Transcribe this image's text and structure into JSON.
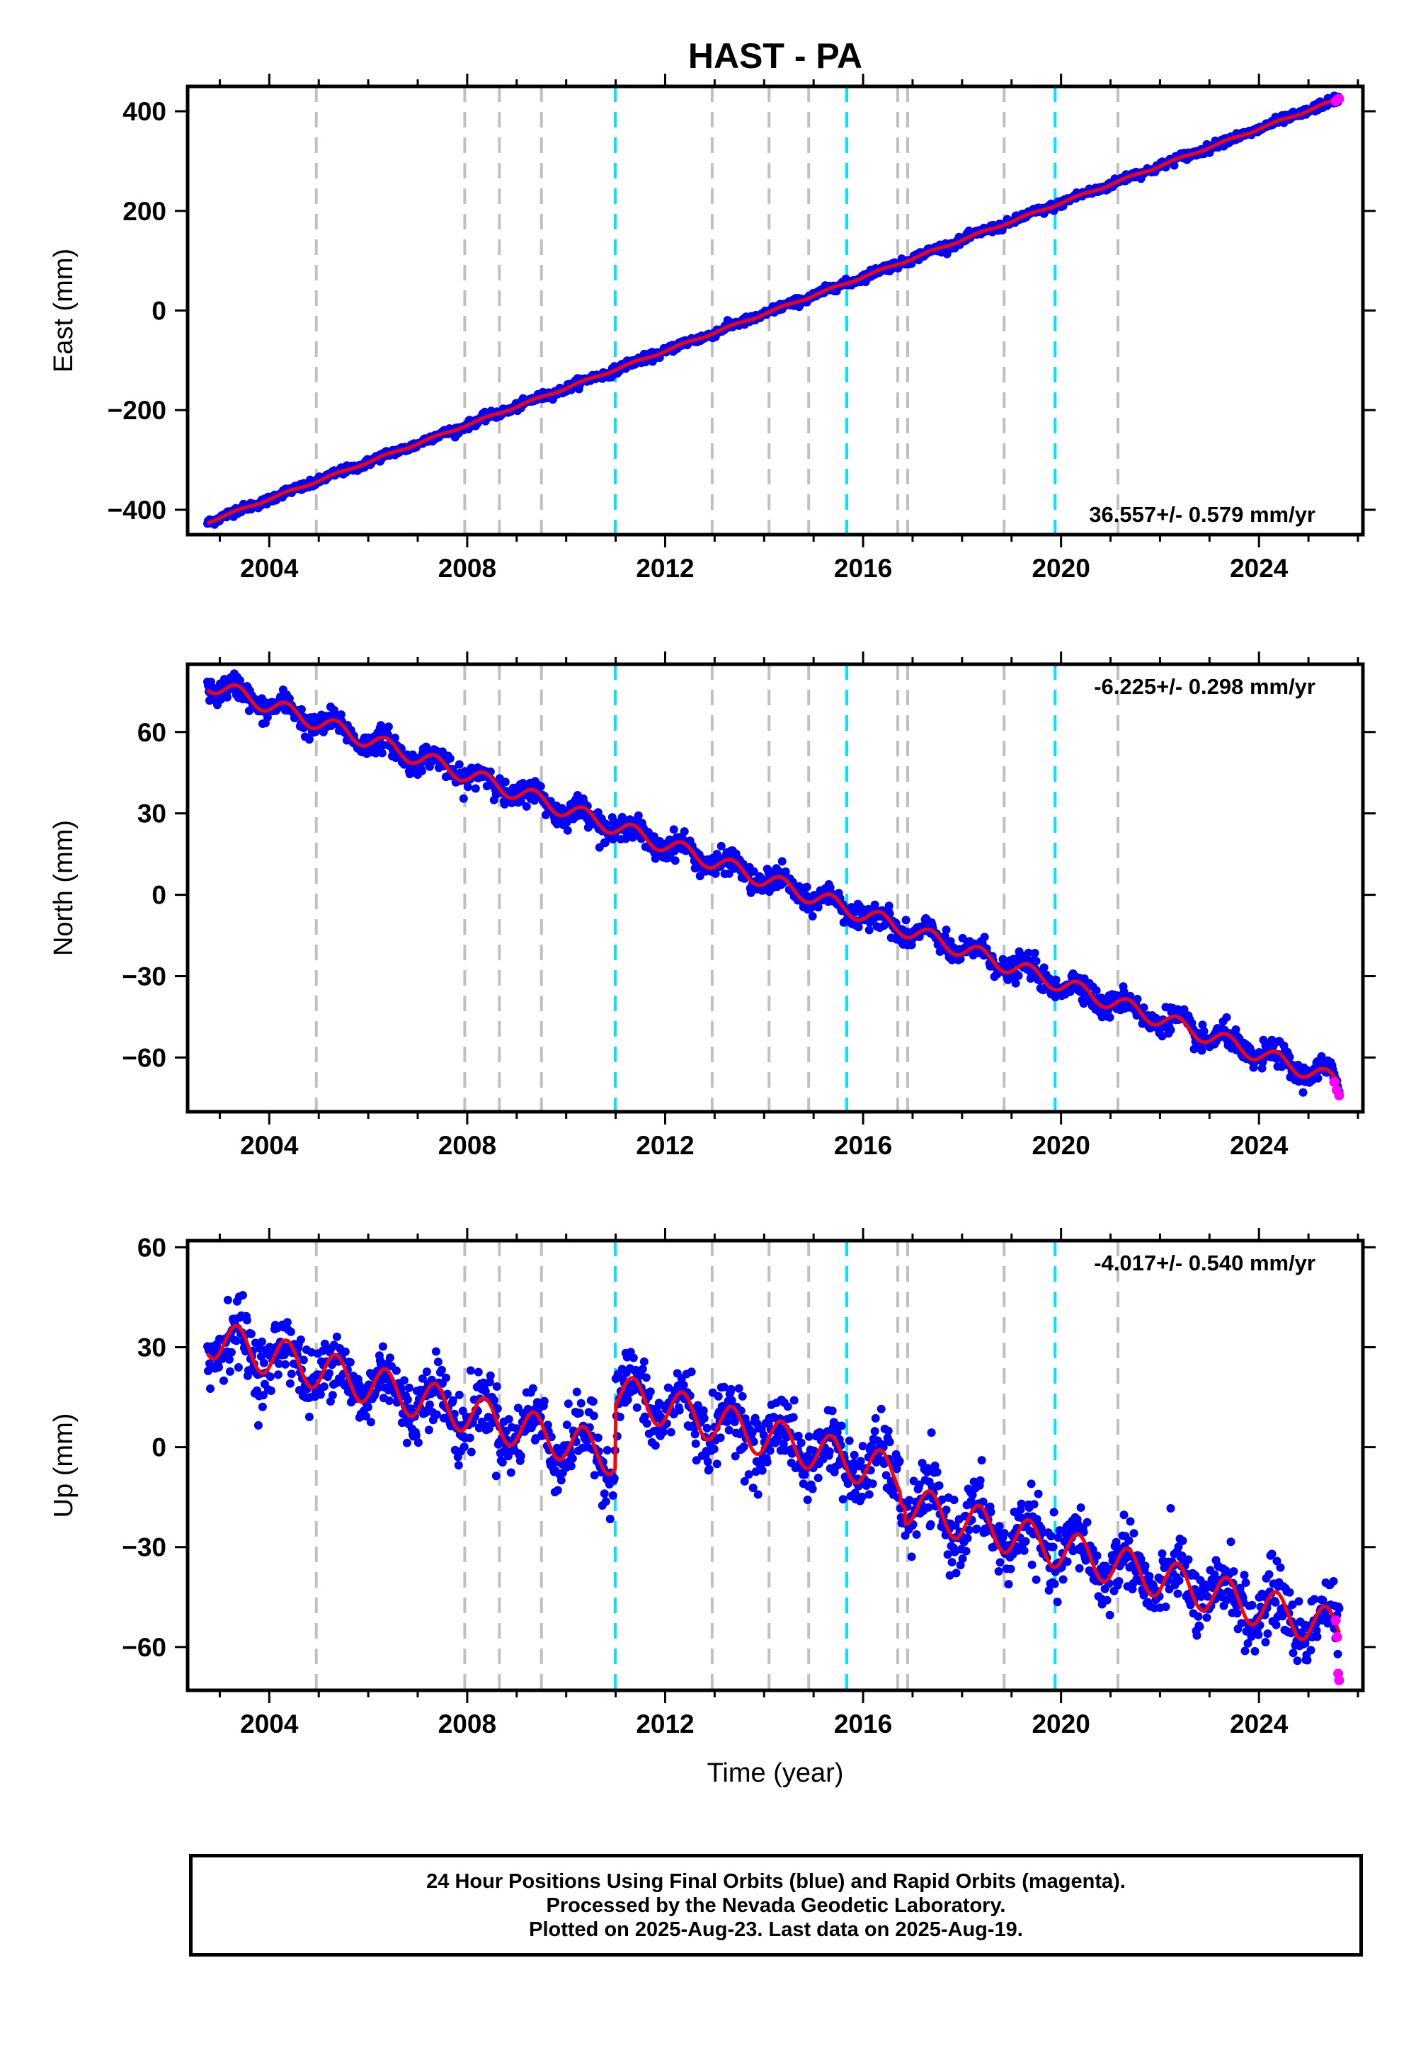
{
  "title": "HAST - PA",
  "xlabel": "Time (year)",
  "footer": {
    "line1": "24 Hour Positions Using Final Orbits (blue) and Rapid Orbits (magenta).",
    "line2": "Processed by the Nevada Geodetic Laboratory.",
    "line3": "Plotted on 2025-Aug-23. Last data on 2025-Aug-19."
  },
  "colors": {
    "final_orbits": "#0000ff",
    "rapid_orbits": "#ff00ff",
    "model_fit": "#ff0000",
    "equipment_change_line": "#c0c0c0",
    "earthquake_line": "#00e5ff"
  },
  "chart_data": [
    {
      "type": "scatter",
      "component": "East",
      "ylabel": "East (mm)",
      "xlim": [
        2002.35,
        2026.1
      ],
      "ylim": [
        -450,
        450
      ],
      "x_ticks": [
        2004,
        2008,
        2012,
        2016,
        2020,
        2024
      ],
      "y_ticks": [
        -400,
        -200,
        0,
        200,
        400
      ],
      "velocity_label": "36.557+/- 0.579 mm/yr",
      "data_start": {
        "year": 2002.75,
        "value": -425
      },
      "data_end": {
        "year": 2025.62,
        "value": 425
      },
      "seasonal_amplitude": 2,
      "scatter_sd": 4,
      "offsets": [],
      "rapid_orbit_points": [
        [
          2025.55,
          420
        ],
        [
          2025.59,
          424
        ],
        [
          2025.62,
          425
        ]
      ],
      "legend": "none"
    },
    {
      "type": "scatter",
      "component": "North",
      "ylabel": "North (mm)",
      "xlim": [
        2002.35,
        2026.1
      ],
      "ylim": [
        -80,
        85
      ],
      "x_ticks": [
        2004,
        2008,
        2012,
        2016,
        2020,
        2024
      ],
      "y_ticks": [
        -60,
        -30,
        0,
        30,
        60
      ],
      "velocity_label": "-6.225+/- 0.298 mm/yr",
      "data_start": {
        "year": 2002.75,
        "value": 78
      },
      "data_end": {
        "year": 2025.62,
        "value": -69
      },
      "seasonal_amplitude": 3,
      "scatter_sd": 2.2,
      "offsets": [],
      "rapid_orbit_points": [
        [
          2025.52,
          -69
        ],
        [
          2025.57,
          -72
        ],
        [
          2025.62,
          -74
        ]
      ],
      "legend": "none"
    },
    {
      "type": "scatter",
      "component": "Up",
      "ylabel": "Up (mm)",
      "xlim": [
        2002.35,
        2026.1
      ],
      "ylim": [
        -73,
        62
      ],
      "x_ticks": [
        2004,
        2008,
        2012,
        2016,
        2020,
        2024
      ],
      "y_ticks": [
        -60,
        -30,
        0,
        30,
        60
      ],
      "velocity_label": "-4.017+/- 0.540 mm/yr",
      "data_start": {
        "year": 2002.75,
        "value": 33
      },
      "data_end": {
        "year": 2025.62,
        "value": -55
      },
      "seasonal_amplitude": 6,
      "scatter_sd": 5,
      "offsets": [
        [
          2010.99,
          19
        ],
        [
          2016.75,
          -3
        ],
        [
          2016.85,
          -5
        ]
      ],
      "rapid_orbit_points": [
        [
          2025.55,
          -52
        ],
        [
          2025.58,
          -57
        ],
        [
          2025.6,
          -68
        ],
        [
          2025.62,
          -70
        ]
      ],
      "legend": "none"
    }
  ],
  "equipment_changes": [
    2004.95,
    2007.95,
    2008.65,
    2009.5,
    2012.95,
    2014.1,
    2014.9,
    2016.7,
    2016.9,
    2018.85,
    2021.15
  ],
  "earthquakes": [
    2010.99,
    2015.67,
    2019.88
  ]
}
